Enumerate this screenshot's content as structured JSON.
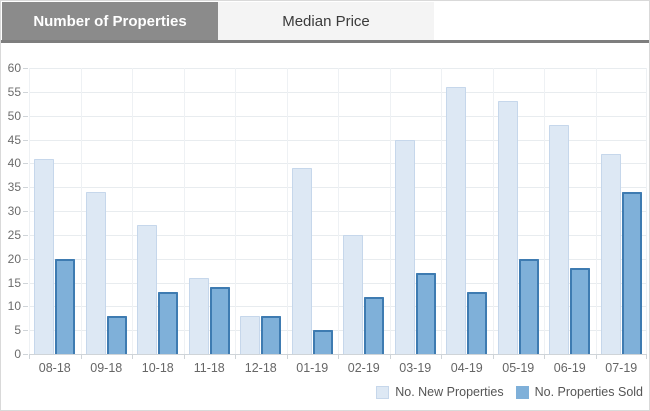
{
  "tabs": [
    {
      "label": "Number of Properties",
      "active": true
    },
    {
      "label": "Median Price",
      "active": false
    }
  ],
  "chart_data": {
    "type": "bar",
    "title": "",
    "categories": [
      "08-18",
      "09-18",
      "10-18",
      "11-18",
      "12-18",
      "01-19",
      "02-19",
      "03-19",
      "04-19",
      "05-19",
      "06-19",
      "07-19"
    ],
    "series": [
      {
        "name": "No. New Properties",
        "values": [
          41,
          34,
          27,
          16,
          8,
          39,
          25,
          45,
          56,
          53,
          48,
          42
        ],
        "fill": "#dde8f4",
        "border": "#c6d7eb"
      },
      {
        "name": "No. Properties Sold",
        "values": [
          20,
          8,
          13,
          14,
          8,
          5,
          12,
          17,
          13,
          20,
          18,
          34
        ],
        "fill": "#7fb0d9",
        "border": "#3e7bb1"
      }
    ],
    "xlabel": "",
    "ylabel": "",
    "ylim": [
      0,
      60
    ],
    "ytick_step": 5,
    "grid": true,
    "legend_position": "bottom-right"
  },
  "colors": {
    "active_tab_bg": "#8b8b8b",
    "active_tab_text": "#ffffff",
    "inactive_tab_bg": "#f4f4f4",
    "inactive_tab_text": "#3a3a3a",
    "tab_underline": "#7e7e7e",
    "grid_line": "#e8ecef",
    "axis_line": "#cfd4d8",
    "axis_text": "#6b6b6b"
  }
}
